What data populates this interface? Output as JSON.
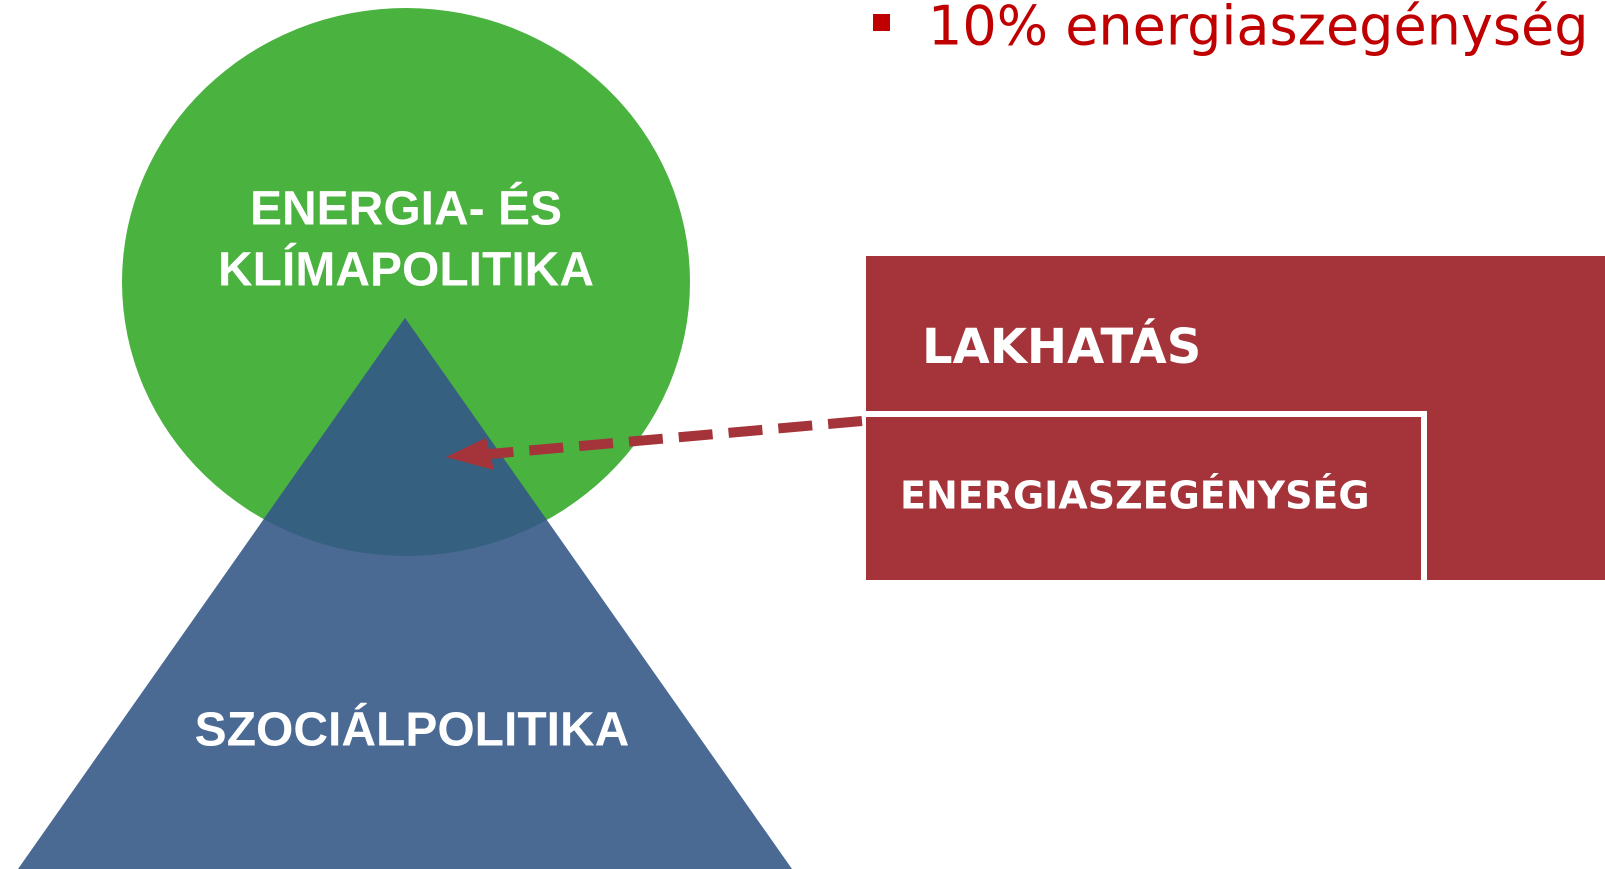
{
  "bullet": "10% energiaszegénység",
  "circle": {
    "lines": [
      "ENERGIA- ÉS",
      "KLÍMAPOLITIKA"
    ]
  },
  "triangle": {
    "label": "SZOCIÁLPOLITIKA"
  },
  "box": {
    "outer_label": "LAKHATÁS",
    "inner_label": "ENERGIASZEGÉNYSÉG"
  }
}
